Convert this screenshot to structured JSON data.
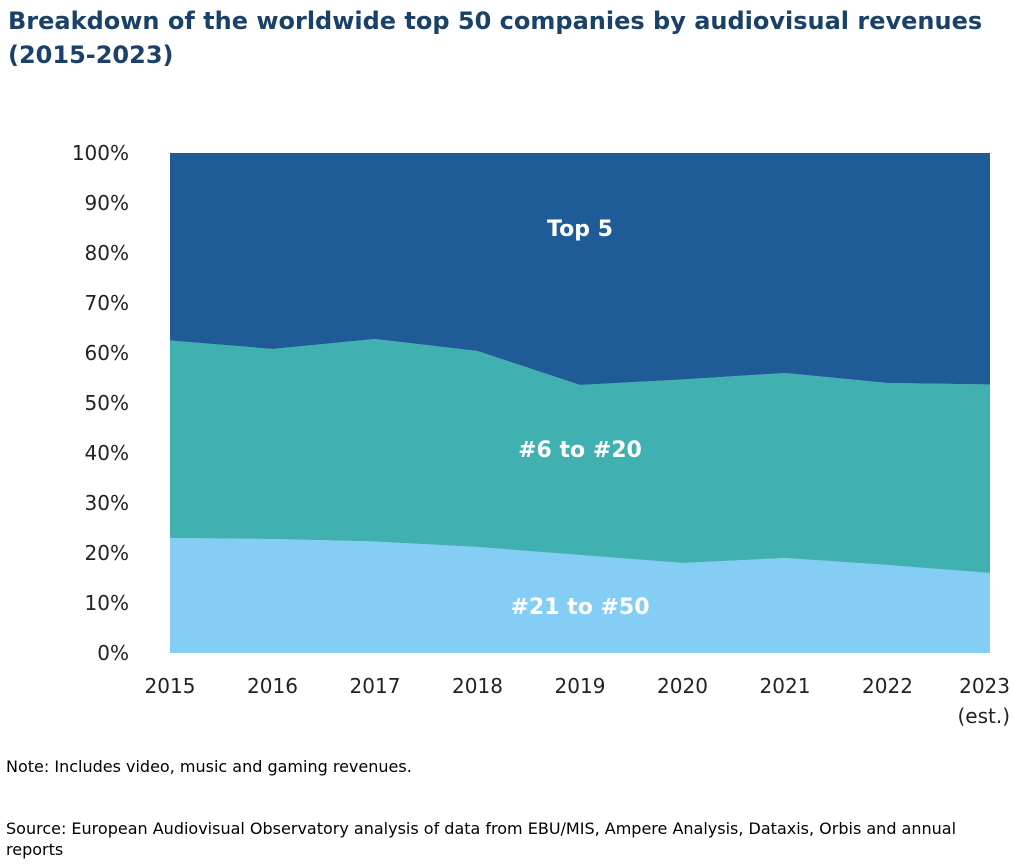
{
  "title": "Breakdown of the worldwide top 50 companies by audiovisual revenues (2015-2023)",
  "note": "Note: Includes video, music and gaming revenues.",
  "source": "Source: European Audiovisual Observatory analysis of data from EBU/MIS, Ampere Analysis, Dataxis, Orbis and annual reports",
  "colors": {
    "top5": "#1f5c97",
    "rank6to20": "#40b0b1",
    "rank21to50": "#84cef5",
    "label": "#ffffff",
    "axis_text": "#222222"
  },
  "chart_data": {
    "type": "area",
    "stacked": true,
    "x": [
      "2015",
      "2016",
      "2017",
      "2018",
      "2019",
      "2020",
      "2021",
      "2022",
      "2023"
    ],
    "x_sublabels": [
      "",
      "",
      "",
      "",
      "",
      "",
      "",
      "",
      "(est.)"
    ],
    "ylim": [
      0,
      100
    ],
    "yticks": [
      "0%",
      "10%",
      "20%",
      "30%",
      "40%",
      "50%",
      "60%",
      "70%",
      "80%",
      "90%",
      "100%"
    ],
    "grid": false,
    "series": [
      {
        "name": "#21 to #50",
        "values": [
          23,
          22.8,
          22.3,
          21.2,
          19.6,
          18,
          19,
          17.6,
          16
        ]
      },
      {
        "name": "#6 to #20",
        "values": [
          39.5,
          38,
          40.5,
          39.2,
          34,
          36.7,
          37,
          36.4,
          37.7
        ]
      },
      {
        "name": "Top 5",
        "values": [
          37.5,
          39.2,
          37.2,
          39.6,
          46.4,
          45.3,
          44,
          46,
          46.3
        ]
      }
    ]
  }
}
